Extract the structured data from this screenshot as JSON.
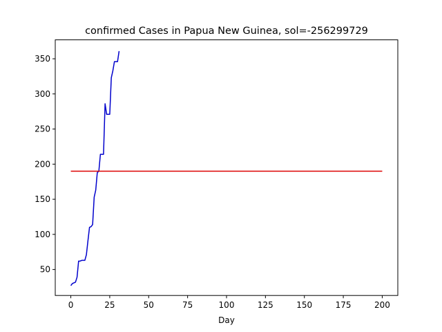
{
  "chart_data": {
    "type": "line",
    "title": "confirmed Cases in Papua New Guinea, sol=-256299729",
    "xlabel": "Day",
    "ylabel": "",
    "xlim": [
      -10,
      210
    ],
    "ylim": [
      13,
      377
    ],
    "xticks": [
      0,
      25,
      50,
      75,
      100,
      125,
      150,
      175,
      200
    ],
    "yticks": [
      50,
      100,
      150,
      200,
      250,
      300,
      350
    ],
    "grid": false,
    "series": [
      {
        "color": "#0000cc",
        "x": [
          0,
          1,
          2,
          3,
          4,
          5,
          6,
          7,
          8,
          9,
          10,
          11,
          12,
          13,
          14,
          15,
          16,
          17,
          18,
          19,
          20,
          21,
          22,
          23,
          24,
          25,
          26,
          27,
          28,
          29,
          30,
          31
        ],
        "y": [
          27,
          30,
          31,
          32,
          39,
          62,
          62,
          63,
          63,
          63,
          71,
          91,
          110,
          111,
          114,
          153,
          163,
          188,
          190,
          214,
          214,
          214,
          286,
          271,
          271,
          271,
          323,
          333,
          346,
          346,
          346,
          361
        ]
      },
      {
        "color": "#dd0000",
        "x": [
          0,
          200
        ],
        "y": [
          190,
          190
        ]
      }
    ]
  }
}
